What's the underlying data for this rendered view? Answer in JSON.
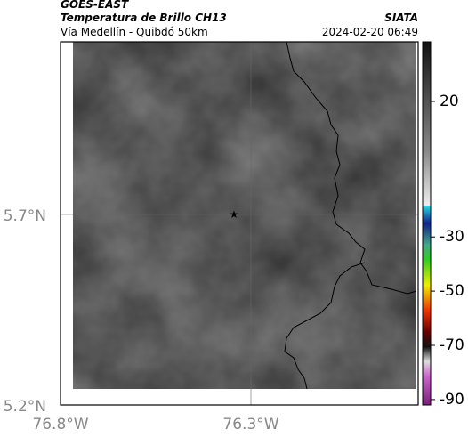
{
  "header": {
    "title": "GOES-EAST",
    "subtitle": "Temperatura de Brillo CH13",
    "source": "SIATA",
    "location": "Vía Medellín - Quibdó 50km",
    "datetime": "2024-02-20 06:49"
  },
  "map": {
    "lat_labels": [
      "5.7°N",
      "5.2°N"
    ],
    "lon_labels": [
      "76.8°W",
      "76.3°W"
    ]
  },
  "colorbar": {
    "range": [
      -92,
      42
    ],
    "ticks": [
      20,
      -30,
      -50,
      -70,
      -90
    ]
  }
}
